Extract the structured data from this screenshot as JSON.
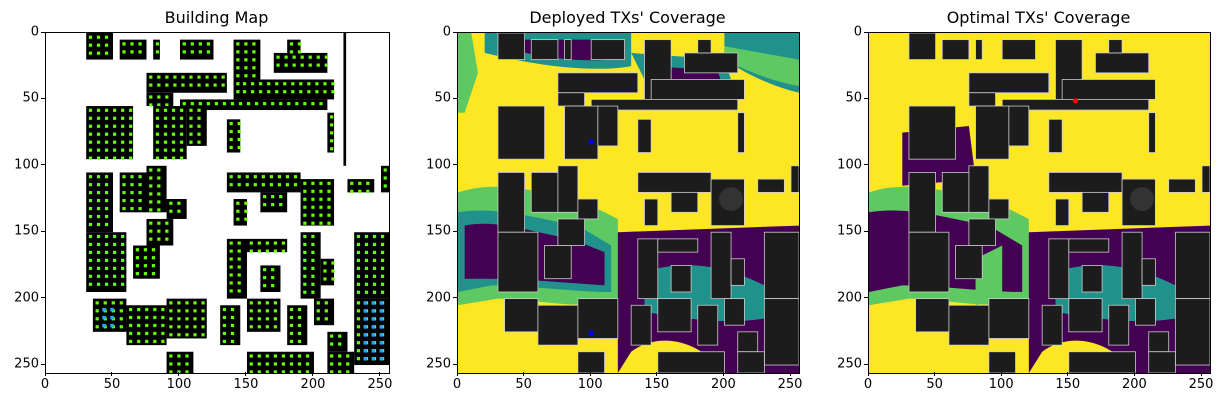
{
  "chart_data": [
    {
      "type": "heatmap",
      "title": "Building Map",
      "xlim": [
        0,
        256
      ],
      "ylim": [
        256,
        0
      ],
      "xticks": [
        0,
        50,
        100,
        150,
        200,
        250
      ],
      "yticks": [
        0,
        50,
        100,
        150,
        200,
        250
      ],
      "colors": {
        "background": "#ffffff",
        "building": "#000000",
        "marker_green": "#66ff00",
        "marker_cyan": "#22aaff"
      }
    },
    {
      "type": "heatmap",
      "title": "Deployed TXs' Coverage",
      "xlim": [
        0,
        256
      ],
      "ylim": [
        256,
        0
      ],
      "xticks": [
        0,
        50,
        100,
        150,
        200,
        250
      ],
      "yticks": [
        0,
        50,
        100,
        150,
        200,
        250
      ],
      "colors": {
        "high": "#fde725",
        "mid_high": "#5ec962",
        "mid": "#21918c",
        "low": "#440154",
        "building": "#1c1c1c"
      },
      "tx_points": [
        [
          100,
          82
        ],
        [
          100,
          226
        ]
      ],
      "tx_color": "#0000ff"
    },
    {
      "type": "heatmap",
      "title": "Optimal TXs' Coverage",
      "xlim": [
        0,
        256
      ],
      "ylim": [
        256,
        0
      ],
      "xticks": [
        0,
        50,
        100,
        150,
        200,
        250
      ],
      "yticks": [
        0,
        50,
        100,
        150,
        200,
        250
      ],
      "colors": {
        "high": "#fde725",
        "mid_high": "#5ec962",
        "mid": "#21918c",
        "low": "#440154",
        "building": "#1c1c1c"
      },
      "tx_points": [
        [
          155,
          51
        ]
      ],
      "tx_color": "#ff0000"
    }
  ]
}
